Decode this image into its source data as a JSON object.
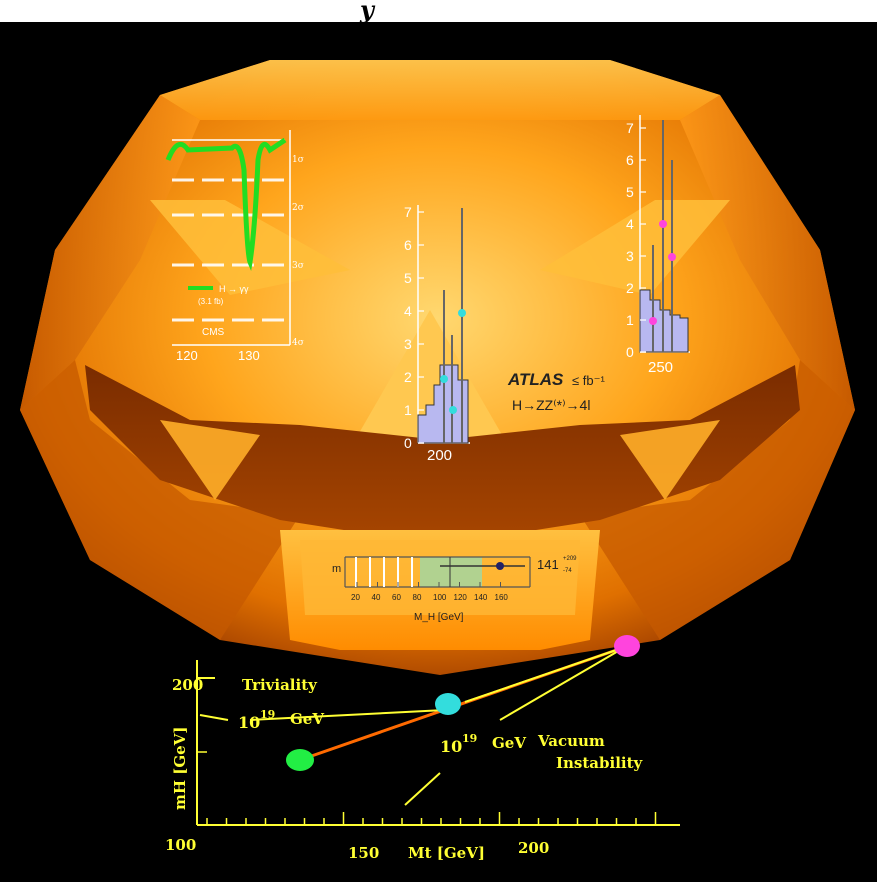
{
  "colors": {
    "background": "#000000",
    "pumpkin_core": "#ffb229",
    "pumpkin_edge": "#b84a00",
    "plot_yellow": "#ffff33",
    "cyan_point": "#33dddd",
    "magenta_point": "#ff44dd",
    "green_point": "#22ee44",
    "orange_line": "#ff6a00",
    "cms_green": "#22dd22",
    "hist_fill": "#b8b8f0",
    "band_green": "#a8d59a"
  },
  "top_banner": {
    "text": "y"
  },
  "cms_plot": {
    "x_ticks": [
      "120",
      "130"
    ],
    "sigma_labels": [
      "1σ",
      "2σ",
      "3σ",
      "4σ"
    ],
    "legend_label": "H → γγ",
    "legend_sub": "(3.1 fb)",
    "experiment": "CMS"
  },
  "atlas_plot_center": {
    "y_ticks": [
      "0",
      "1",
      "2",
      "3",
      "4",
      "5",
      "6",
      "7"
    ],
    "x_tick": "200"
  },
  "atlas_plot_right": {
    "y_ticks": [
      "0",
      "1",
      "2",
      "3",
      "4",
      "5",
      "6",
      "7"
    ],
    "x_tick": "250"
  },
  "atlas_label": {
    "experiment": "ATLAS",
    "lumi": "≤ fb⁻¹",
    "channel": "H→ZZ⁽*⁾→4l"
  },
  "ew_fit": {
    "label_left": "m",
    "x_ticks": [
      "20",
      "40",
      "60",
      "80",
      "100",
      "120",
      "140",
      "160"
    ],
    "x_label": "M_H [GeV]",
    "right_value": "141",
    "right_sub": "+209",
    "right_sub2": "-74"
  },
  "bounds_plot": {
    "x_label": "Mt [GeV]",
    "y_label": "mH [GeV]",
    "y_ticks": [
      "100",
      "200"
    ],
    "x_ticks": [
      "150",
      "200"
    ],
    "annotation_triviality": "Triviality",
    "annotation_scale_1": "10",
    "annotation_scale_1_exp": "19",
    "annotation_scale_1_unit": "GeV",
    "annotation_scale_2": "10",
    "annotation_scale_2_exp": "19",
    "annotation_scale_2_unit": "GeV",
    "annotation_vacuum": "Vacuum",
    "annotation_instability": "Instability"
  }
}
